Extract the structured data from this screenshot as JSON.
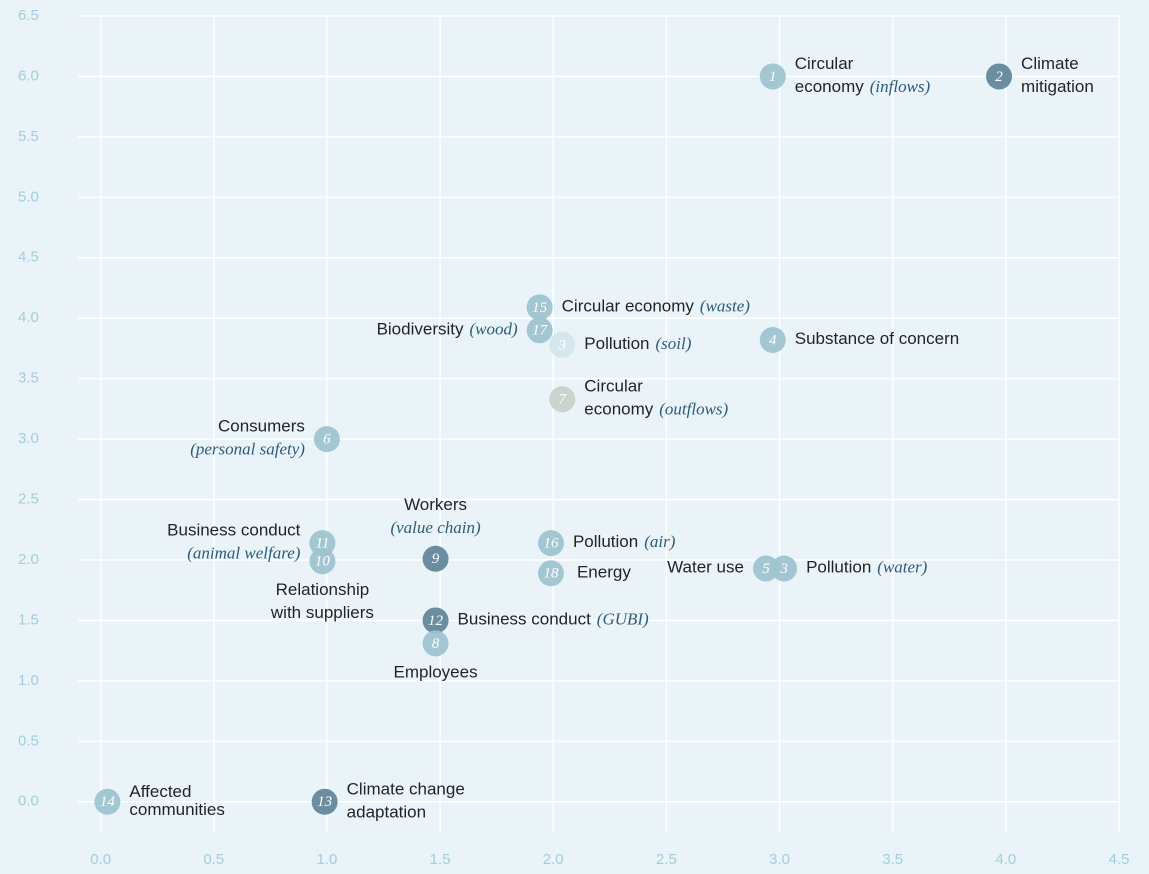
{
  "chart_data": {
    "type": "scatter",
    "xlim": [
      -0.1,
      4.5
    ],
    "ylim": [
      -0.25,
      6.5
    ],
    "xticks": [
      {
        "value": 0,
        "label": "0.0"
      },
      {
        "value": 0.5,
        "label": "0.5"
      },
      {
        "value": 1,
        "label": "1.0"
      },
      {
        "value": 1.5,
        "label": "1.5"
      },
      {
        "value": 2,
        "label": "2.0"
      },
      {
        "value": 2.5,
        "label": "2.5"
      },
      {
        "value": 3,
        "label": "3.0"
      },
      {
        "value": 3.5,
        "label": "3.5"
      },
      {
        "value": 4,
        "label": "4.0"
      },
      {
        "value": 4.5,
        "label": "4.5"
      }
    ],
    "yticks": [
      {
        "value": 0,
        "label": "0.0"
      },
      {
        "value": 0.5,
        "label": "0.5"
      },
      {
        "value": 1,
        "label": "1.0"
      },
      {
        "value": 1.5,
        "label": "1.5"
      },
      {
        "value": 2,
        "label": "2.0"
      },
      {
        "value": 2.5,
        "label": "2.5"
      },
      {
        "value": 3,
        "label": "3.0"
      },
      {
        "value": 3.5,
        "label": "3.5"
      },
      {
        "value": 4,
        "label": "4.0"
      },
      {
        "value": 4.5,
        "label": "4.5"
      },
      {
        "value": 5,
        "label": "5.0"
      },
      {
        "value": 5.5,
        "label": "5.5"
      },
      {
        "value": 6,
        "label": "6.0"
      },
      {
        "value": 6.5,
        "label": "6.5"
      }
    ],
    "grid": true,
    "points": [
      {
        "id": "1",
        "x": 2.97,
        "y": 6.0,
        "color": "#9cc3ce",
        "label": [
          "Circular",
          "economy"
        ],
        "qualifier": "(inflows)"
      },
      {
        "id": "2",
        "x": 3.97,
        "y": 6.0,
        "color": "#5e8498",
        "label": [
          "Climate",
          "mitigation"
        ]
      },
      {
        "id": "15",
        "x": 1.94,
        "y": 4.09,
        "color": "#9cc3ce",
        "label": [
          "Circular economy"
        ],
        "qualifier": "(waste)"
      },
      {
        "id": "17",
        "x": 1.94,
        "y": 3.9,
        "color": "#9cc3ce",
        "label": [
          "Biodiversity"
        ],
        "qualifier": "(wood)"
      },
      {
        "id": "3",
        "x": 2.04,
        "y": 3.78,
        "color": "#d3e6ec",
        "label": [
          "Pollution"
        ],
        "qualifier": "(soil)"
      },
      {
        "id": "4",
        "x": 2.97,
        "y": 3.82,
        "color": "#9cc3ce",
        "label": [
          "Substance of concern"
        ]
      },
      {
        "id": "7",
        "x": 2.04,
        "y": 3.33,
        "color": "#c6d1cb",
        "label": [
          "Circular",
          "economy"
        ],
        "qualifier": "(outflows)"
      },
      {
        "id": "6",
        "x": 1.0,
        "y": 3.0,
        "color": "#9cc3ce",
        "label": [
          "Consumers"
        ],
        "qualifier": "(personal safety)"
      },
      {
        "id": "11",
        "x": 0.98,
        "y": 2.14,
        "color": "#9cc3ce",
        "label": [
          "Business conduct"
        ],
        "qualifier": "(animal welfare)"
      },
      {
        "id": "10",
        "x": 0.98,
        "y": 1.99,
        "color": "#9cc3ce",
        "label": [
          "Relationship",
          "with suppliers"
        ]
      },
      {
        "id": "9",
        "x": 1.48,
        "y": 2.01,
        "color": "#5e8498",
        "label": [
          "Workers"
        ],
        "qualifier": "(value chain)"
      },
      {
        "id": "16",
        "x": 1.99,
        "y": 2.14,
        "color": "#9cc3ce",
        "label": [
          "Pollution"
        ],
        "qualifier": "(air)"
      },
      {
        "id": "18",
        "x": 1.99,
        "y": 1.89,
        "color": "#9cc3ce",
        "label": [
          "Energy"
        ]
      },
      {
        "id": "5",
        "x": 2.94,
        "y": 1.93,
        "color": "#9cc3ce",
        "label": [
          "Water use"
        ]
      },
      {
        "id": "3",
        "x": 3.02,
        "y": 1.93,
        "color": "#9cc3ce",
        "label": [
          "Pollution"
        ],
        "qualifier": "(water)"
      },
      {
        "id": "12",
        "x": 1.48,
        "y": 1.5,
        "color": "#5e8498",
        "label": [
          "Business conduct"
        ],
        "qualifier": "(GUBI)"
      },
      {
        "id": "8",
        "x": 1.48,
        "y": 1.31,
        "color": "#9cc3ce",
        "label": [
          "Employees"
        ]
      },
      {
        "id": "14",
        "x": 0.03,
        "y": 0,
        "color": "#9cc3ce",
        "label": [
          "Affected",
          "communities"
        ]
      },
      {
        "id": "13",
        "x": 0.99,
        "y": 0,
        "color": "#5e8498",
        "label": [
          "Climate change",
          "adaptation"
        ]
      }
    ]
  }
}
